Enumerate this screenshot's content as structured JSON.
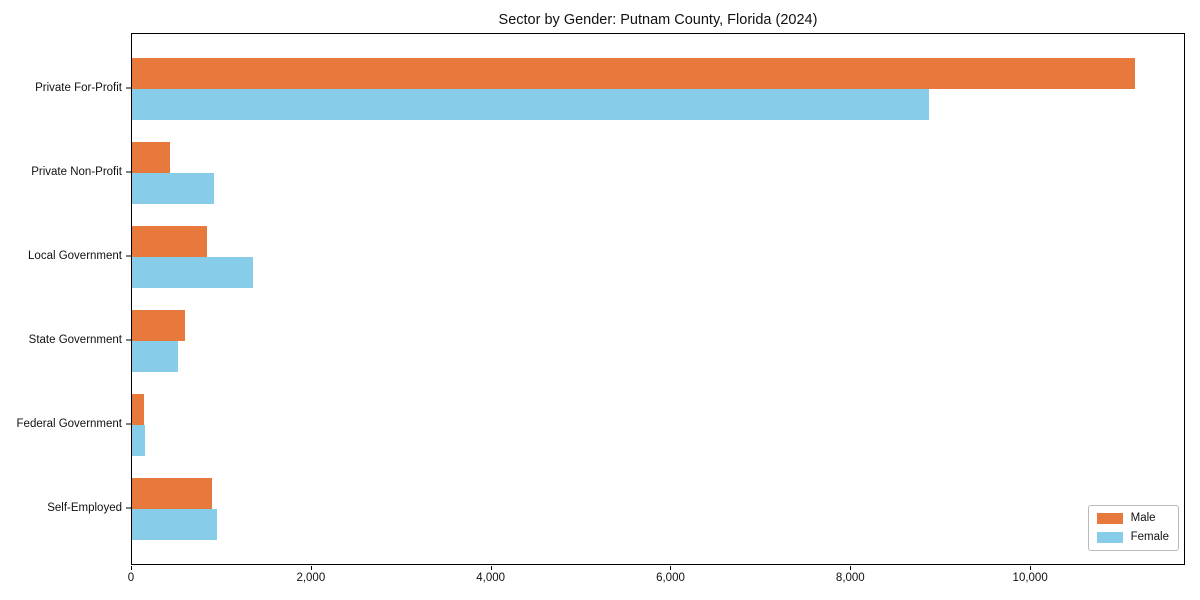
{
  "chart_data": {
    "type": "bar",
    "orientation": "horizontal",
    "title": "Sector by Gender: Putnam County, Florida (2024)",
    "categories": [
      "Private For-Profit",
      "Private Non-Profit",
      "Local Government",
      "State Government",
      "Federal Government",
      "Self-Employed"
    ],
    "series": [
      {
        "name": "Male",
        "color": "#E8793D",
        "values": [
          11150,
          420,
          830,
          590,
          130,
          890
        ]
      },
      {
        "name": "Female",
        "color": "#87CDE9",
        "values": [
          8860,
          910,
          1350,
          510,
          150,
          940
        ]
      }
    ],
    "xlabel": "",
    "ylabel": "",
    "xlim": [
      0,
      11700
    ],
    "x_ticks": [
      {
        "value": 0,
        "label": "0"
      },
      {
        "value": 2000,
        "label": "2,000"
      },
      {
        "value": 4000,
        "label": "4,000"
      },
      {
        "value": 6000,
        "label": "6,000"
      },
      {
        "value": 8000,
        "label": "8,000"
      },
      {
        "value": 10000,
        "label": "10,000"
      }
    ],
    "grid": false,
    "legend": {
      "position": "lower right"
    }
  }
}
